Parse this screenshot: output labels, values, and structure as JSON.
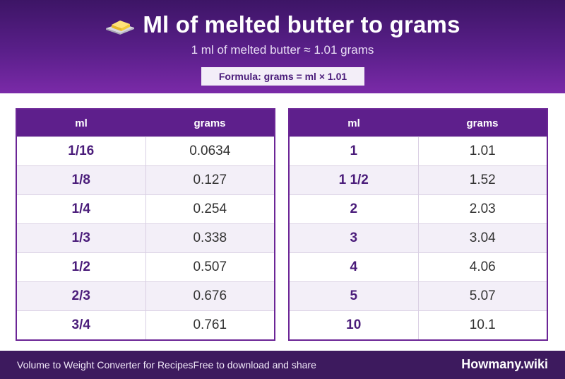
{
  "header": {
    "title": "Ml of melted butter to grams",
    "subtitle": "1 ml of melted butter ≈ 1.01 grams",
    "formula": "Formula: grams = ml × 1.01",
    "icon": "butter-icon"
  },
  "tables": [
    {
      "col_ml": "ml",
      "col_grams": "grams",
      "rows": [
        {
          "ml": "1/16",
          "grams": "0.0634"
        },
        {
          "ml": "1/8",
          "grams": "0.127"
        },
        {
          "ml": "1/4",
          "grams": "0.254"
        },
        {
          "ml": "1/3",
          "grams": "0.338"
        },
        {
          "ml": "1/2",
          "grams": "0.507"
        },
        {
          "ml": "2/3",
          "grams": "0.676"
        },
        {
          "ml": "3/4",
          "grams": "0.761"
        }
      ]
    },
    {
      "col_ml": "ml",
      "col_grams": "grams",
      "rows": [
        {
          "ml": "1",
          "grams": "1.01"
        },
        {
          "ml": "1 1/2",
          "grams": "1.52"
        },
        {
          "ml": "2",
          "grams": "2.03"
        },
        {
          "ml": "3",
          "grams": "3.04"
        },
        {
          "ml": "4",
          "grams": "4.06"
        },
        {
          "ml": "5",
          "grams": "5.07"
        },
        {
          "ml": "10",
          "grams": "10.1"
        }
      ]
    }
  ],
  "footer": {
    "text": "Volume to Weight Converter for RecipesFree to download and share",
    "brand": "Howmany.wiki"
  },
  "colors": {
    "header_dark": "#3d1566",
    "header_light": "#7a2aa8",
    "accent_text": "#4a1c7a",
    "table_header": "#5e1f8c",
    "footer": "#3d1a5e"
  }
}
